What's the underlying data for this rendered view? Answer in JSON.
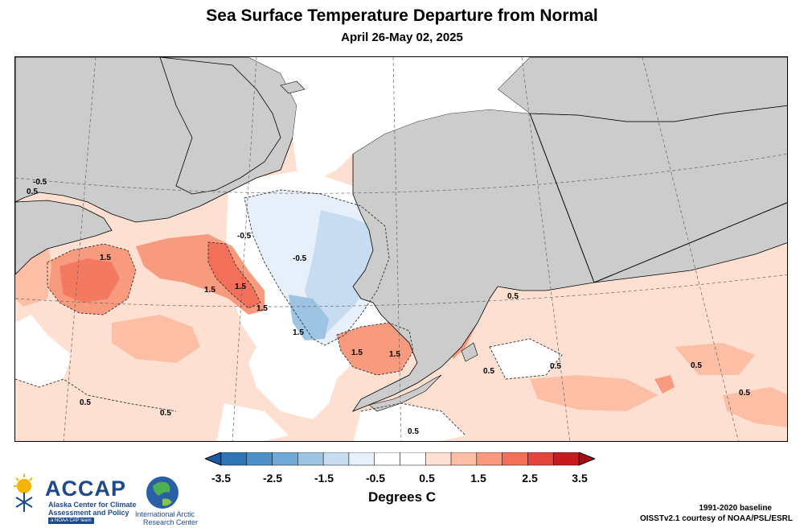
{
  "title": "Sea Surface Temperature Departure from Normal",
  "subtitle": "April 26-May 02, 2025",
  "colorbar": {
    "labels": [
      "-3.5",
      "-2.5",
      "-1.5",
      "-0.5",
      "0.5",
      "1.5",
      "2.5",
      "3.5"
    ],
    "colors": [
      "#2f74b5",
      "#4d8fc7",
      "#73a9d6",
      "#9ec4e4",
      "#c7dcf0",
      "#e7f0fa",
      "#ffffff",
      "#ffffff",
      "#fde0d2",
      "#fcbfa6",
      "#f89a7e",
      "#f2705a",
      "#e3453c",
      "#c8191e"
    ],
    "units": "Degrees C"
  },
  "map": {
    "land_color": "#cccccc",
    "ice_color": "#ffffff",
    "contour_labels": [
      "-0.5",
      "0.5",
      "-0.5",
      "-0.5",
      "1.5",
      "1.5",
      "1.5",
      "1.5",
      "1.5",
      "1.5",
      "1.5",
      "0.5",
      "0.5",
      "0.5",
      "0.5",
      "0.5",
      "0.5",
      "0.5",
      "0.5"
    ]
  },
  "logos": {
    "accap_word": "ACCAP",
    "accap_line1": "Alaska Center for Climate",
    "accap_line2": "Assessment and Policy",
    "accap_tag": "a NOAA CAP team",
    "iarc_line1": "International Arctic",
    "iarc_line2": "Research Center"
  },
  "footer": {
    "baseline": "1991-2020 baseline",
    "credit": "OISSTv2.1 courtesy of NOAA/PSL/ESRL"
  }
}
